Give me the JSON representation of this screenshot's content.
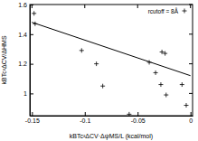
{
  "chart_data": {
    "type": "scatter",
    "x_label": "kBTc²ΔCV·ΔψMS/L (kcal/mol)",
    "y_label": "kBTc²ΔCV/ΔHMS",
    "xlim": [
      -0.152,
      0.002
    ],
    "ylim": [
      0.85,
      1.6
    ],
    "xticks": [
      -0.15,
      -0.1,
      -0.05,
      0
    ],
    "yticks": [
      1,
      1.2,
      1.4,
      1.6
    ],
    "legend": "upper right",
    "series": [
      {
        "name": "rcutoff = 8Å",
        "type": "scatter",
        "marker": "plus",
        "color": "#000000",
        "x": [
          -0.148,
          -0.147,
          -0.103,
          -0.089,
          -0.083,
          -0.058,
          -0.039,
          -0.033,
          -0.028,
          -0.027,
          -0.024,
          -0.023,
          -0.008,
          -0.004
        ],
        "values": [
          1.54,
          1.47,
          1.29,
          1.2,
          1.05,
          0.86,
          1.21,
          1.14,
          1.06,
          1.28,
          1.27,
          0.99,
          1.06,
          0.92
        ]
      },
      {
        "type": "line",
        "line_style": "solid",
        "color": "#000000",
        "x": [
          -0.15,
          0
        ],
        "values": [
          1.48,
          1.12
        ]
      }
    ]
  }
}
